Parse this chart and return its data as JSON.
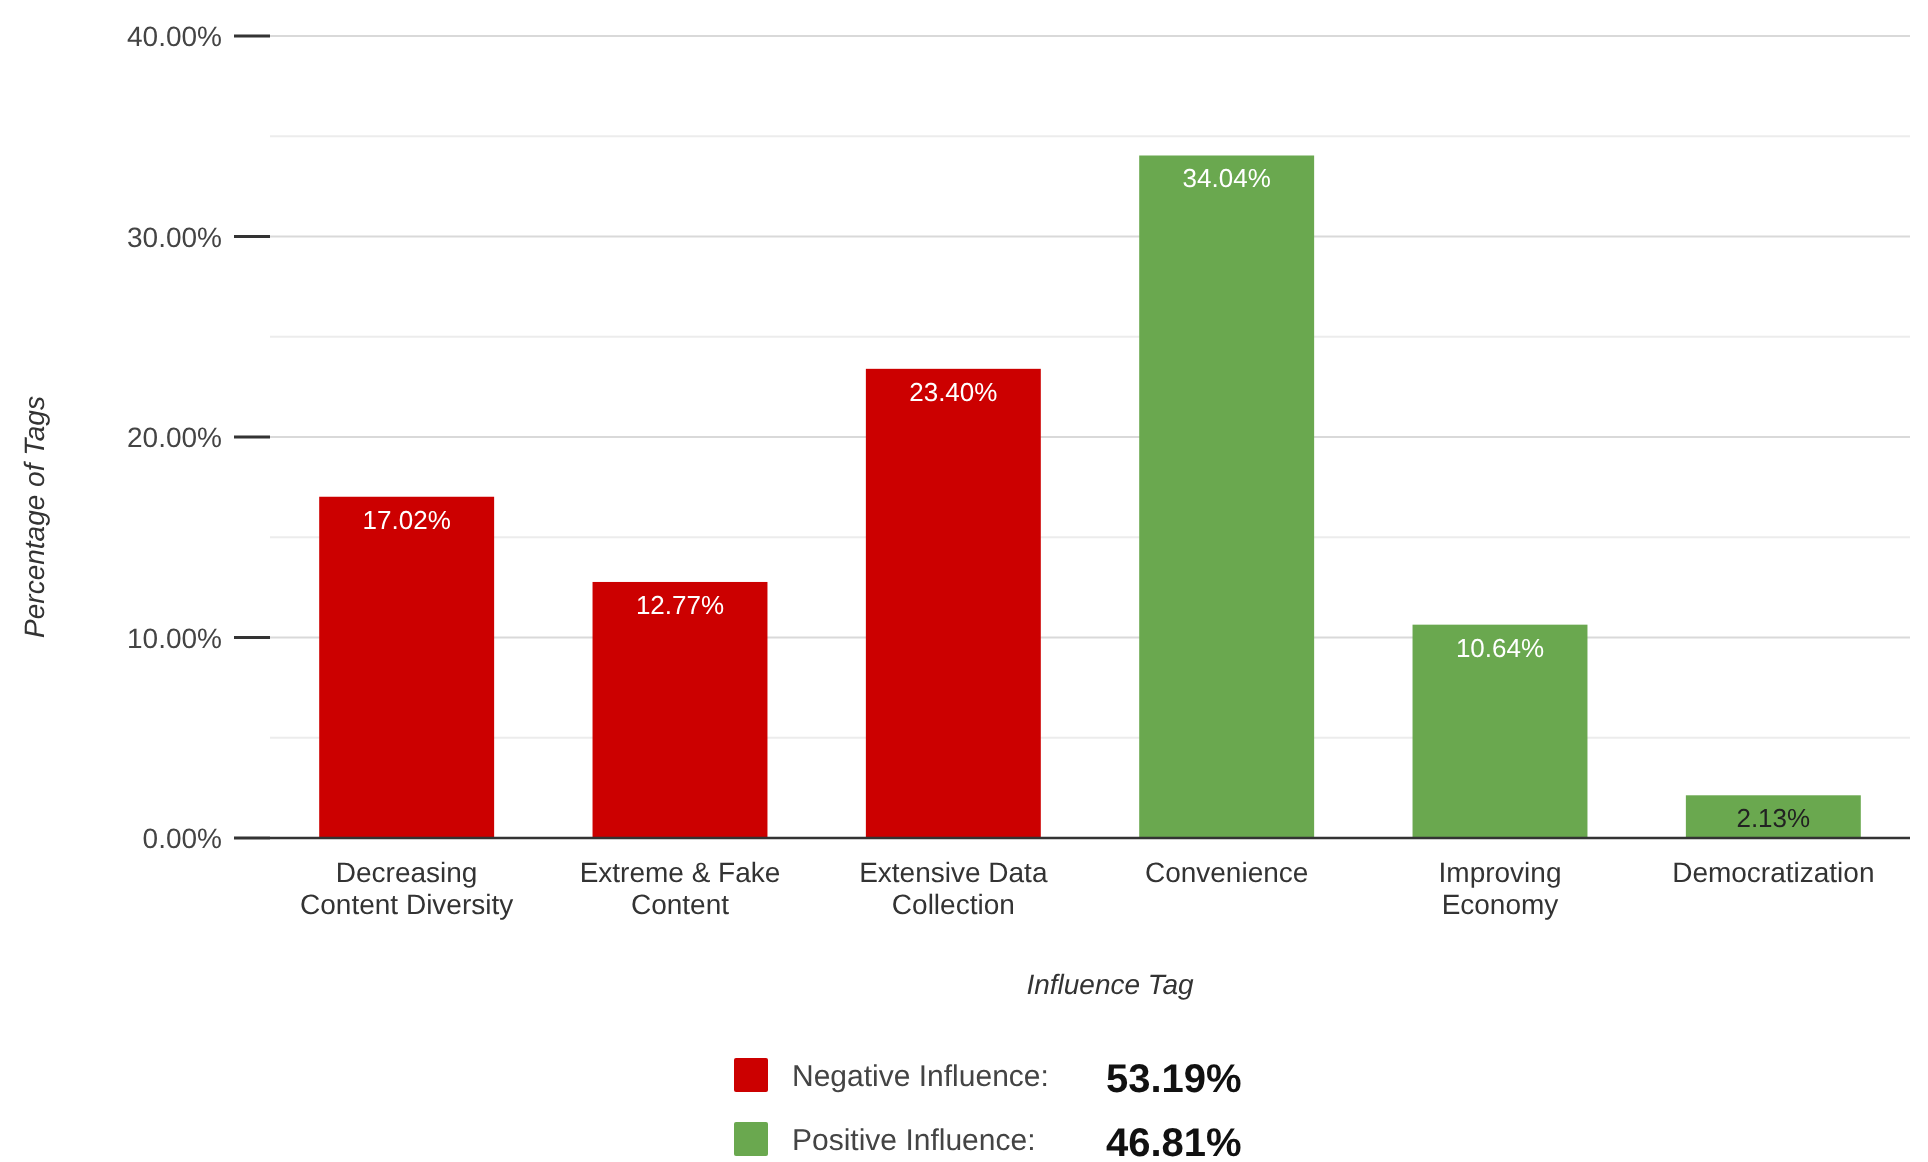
{
  "chart_data": {
    "type": "bar",
    "xlabel": "Influence Tag",
    "ylabel": "Percentage of Tags",
    "categories": [
      "Decreasing Content Diversity",
      "Extreme & Fake Content",
      "Extensive Data Collection",
      "Convenience",
      "Improving Economy",
      "Democratization"
    ],
    "series": [
      {
        "name": "Negative Influence:",
        "color": "#cc0000",
        "values": [
          17.02,
          12.77,
          23.4,
          null,
          null,
          null
        ],
        "value_labels": [
          "17.02%",
          "12.77%",
          "23.40%",
          null,
          null,
          null
        ]
      },
      {
        "name": "Positive Influence:",
        "color": "#6aa84f",
        "values": [
          null,
          null,
          null,
          34.04,
          10.64,
          2.13
        ],
        "value_labels": [
          null,
          null,
          null,
          "34.04%",
          "10.64%",
          "2.13%"
        ]
      }
    ],
    "ylim": [
      0,
      40
    ],
    "yticks": [
      {
        "value": 0,
        "label": "0.00%"
      },
      {
        "value": 5,
        "label": null
      },
      {
        "value": 10,
        "label": "10.00%"
      },
      {
        "value": 15,
        "label": null
      },
      {
        "value": 20,
        "label": "20.00%"
      },
      {
        "value": 25,
        "label": null
      },
      {
        "value": 30,
        "label": "30.00%"
      },
      {
        "value": 35,
        "label": null
      },
      {
        "value": 40,
        "label": "40.00%"
      }
    ],
    "grid": true,
    "legend": "bottom",
    "annotations": [
      "53.19%",
      "46.81%"
    ]
  }
}
